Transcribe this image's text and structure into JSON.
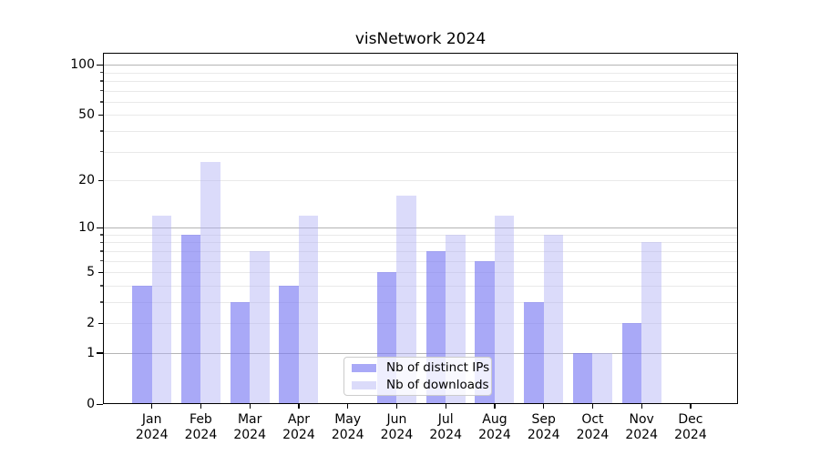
{
  "chart_data": {
    "type": "bar",
    "title": "visNetwork 2024",
    "categories": [
      "Jan 2024",
      "Feb 2024",
      "Mar 2024",
      "Apr 2024",
      "May 2024",
      "Jun 2024",
      "Jul 2024",
      "Aug 2024",
      "Sep 2024",
      "Oct 2024",
      "Nov 2024",
      "Dec 2024"
    ],
    "series": [
      {
        "name": "Nb of distinct IPs",
        "color": "rgba(123,123,243,0.65)",
        "color_flat": "#a9a9f7",
        "values": [
          4,
          9,
          3,
          4,
          0,
          5,
          7,
          6,
          3,
          1,
          2,
          0
        ]
      },
      {
        "name": "Nb of downloads",
        "color": "rgba(175,175,244,0.45)",
        "color_flat": "#dbdbfa",
        "values": [
          12,
          26,
          7,
          12,
          0,
          16,
          9,
          12,
          9,
          1,
          8,
          0
        ]
      }
    ],
    "yscale": "log1p",
    "ylim": [
      0,
      115
    ],
    "y_ticks_labeled": [
      0,
      1,
      2,
      5,
      10,
      20,
      50,
      100
    ],
    "y_ticks_major": [
      1,
      10,
      100
    ],
    "y_ticks_minor": [
      2,
      3,
      4,
      5,
      6,
      7,
      8,
      9,
      20,
      30,
      40,
      50,
      60,
      70,
      80,
      90
    ],
    "grid": "on",
    "legend_position": "lower center",
    "xlabel": "",
    "ylabel": ""
  }
}
